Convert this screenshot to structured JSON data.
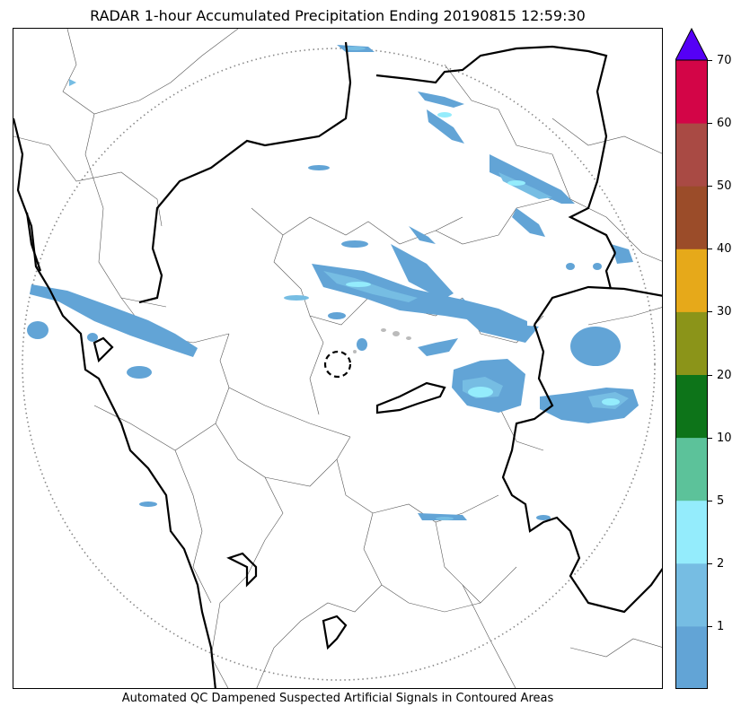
{
  "title": "RADAR 1-hour Accumulated Precipitation Ending 20190815 12:59:30",
  "caption": "Automated QC Dampened Suspected Artificial Signals in Contoured Areas",
  "colorbar": {
    "tick_labels": [
      "1",
      "2",
      "5",
      "10",
      "20",
      "30",
      "40",
      "50",
      "60",
      "70"
    ],
    "levels": [
      {
        "label": "<1",
        "color": "#62a4d6"
      },
      {
        "label": "1-2",
        "color": "#76bde3"
      },
      {
        "label": "2-5",
        "color": "#94ecfc"
      },
      {
        "label": "5-10",
        "color": "#5cc29a"
      },
      {
        "label": "10-20",
        "color": "#0d7419"
      },
      {
        "label": "20-30",
        "color": "#8b9419"
      },
      {
        "label": "30-40",
        "color": "#e6a91a"
      },
      {
        "label": "40-50",
        "color": "#9b4c29"
      },
      {
        "label": "50-60",
        "color": "#a94a44"
      },
      {
        "label": "60-70",
        "color": "#d30547"
      },
      {
        "label": ">70",
        "color": "#5500f6"
      }
    ],
    "extend": "max"
  },
  "map": {
    "range_ring": "dotted",
    "radar_site_marker": "dashed-circle",
    "boundary_colors": {
      "state": "#000000",
      "district": "#555555"
    }
  }
}
